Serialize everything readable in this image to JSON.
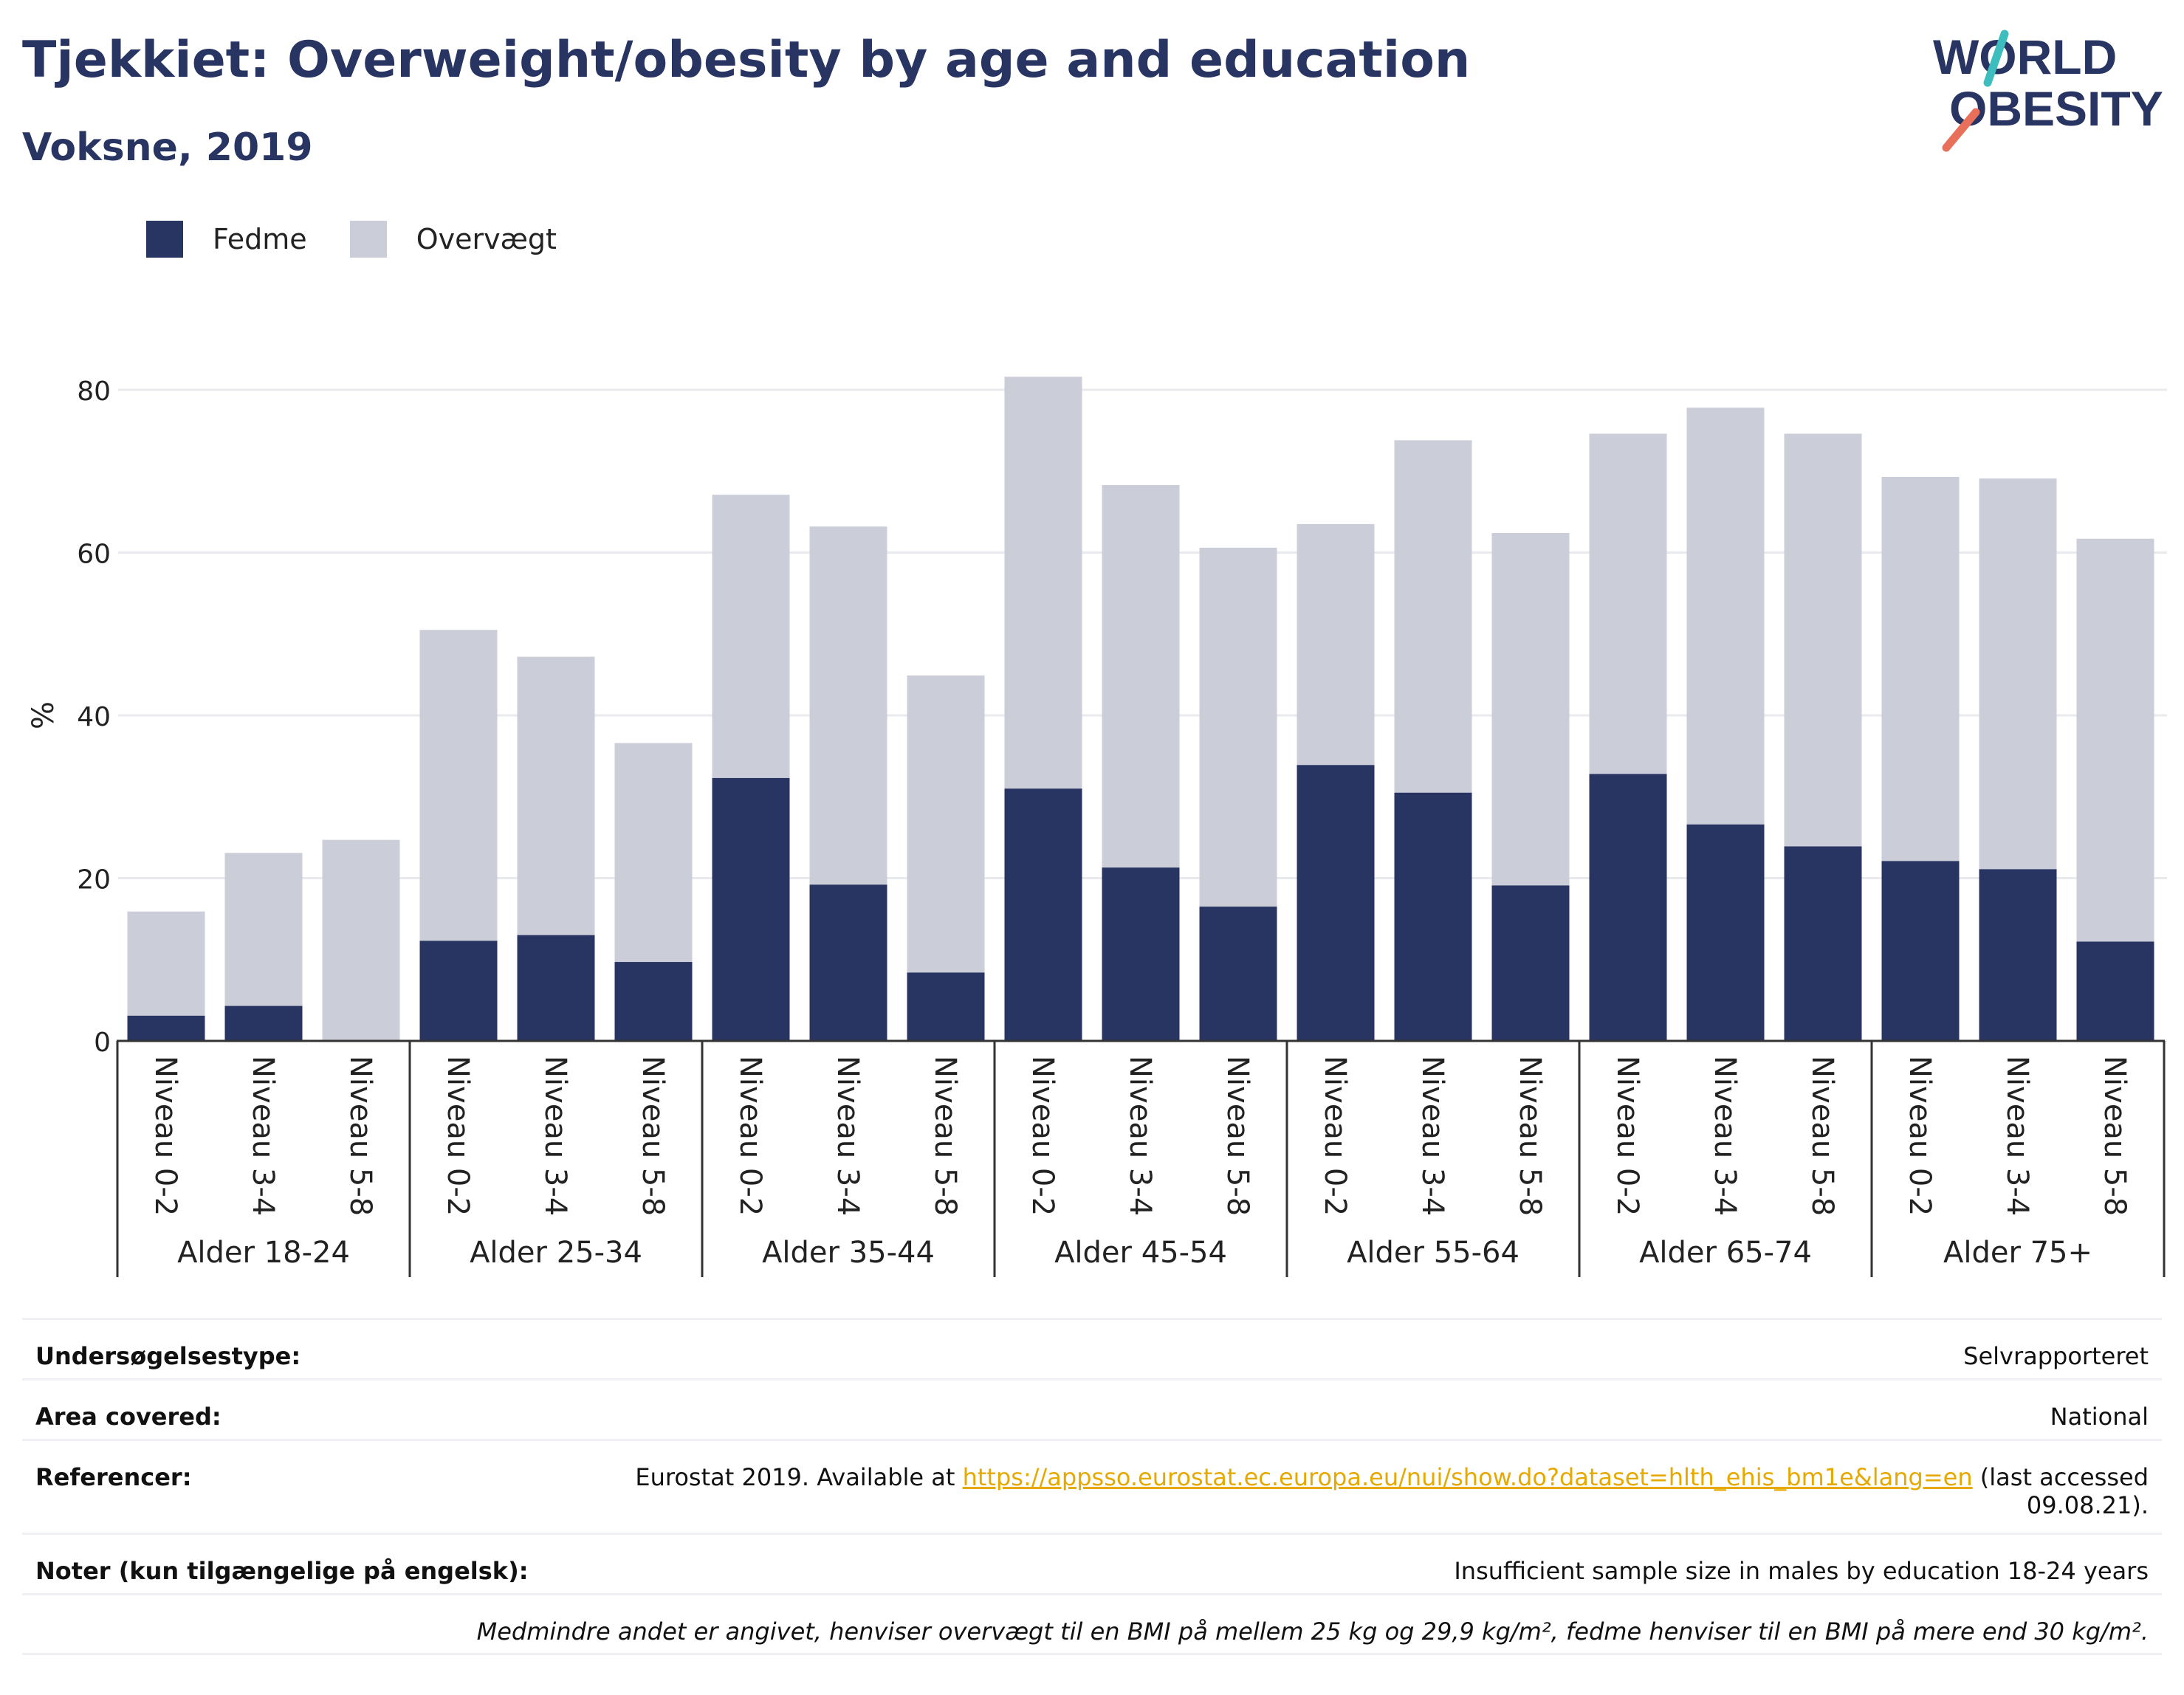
{
  "header": {
    "title": "Tjekkiet: Overweight/obesity by age and education",
    "subtitle": "Voksne, 2019",
    "logo_line1": "WORLD",
    "logo_line2": "OBESITY"
  },
  "colors": {
    "obesity": "#283462",
    "overweight": "#cbcdd9",
    "title": "#283462",
    "link": "#e6a900",
    "logo_teal": "#3dbdbd",
    "logo_coral": "#e8705a"
  },
  "legend": [
    {
      "label": "Fedme",
      "color": "#283462"
    },
    {
      "label": "Overvægt",
      "color": "#cbcdd9"
    }
  ],
  "chart_data": {
    "type": "bar",
    "stacked": true,
    "ylabel": "%",
    "ylim": [
      0,
      83
    ],
    "yticks": [
      0,
      20,
      40,
      60,
      80
    ],
    "grid": true,
    "legend_position": "top-left",
    "groups": [
      {
        "label": "Alder 18-24",
        "categories": [
          "Niveau 0-2",
          "Niveau 3-4",
          "Niveau 5-8"
        ]
      },
      {
        "label": "Alder 25-34",
        "categories": [
          "Niveau 0-2",
          "Niveau 3-4",
          "Niveau 5-8"
        ]
      },
      {
        "label": "Alder 35-44",
        "categories": [
          "Niveau 0-2",
          "Niveau 3-4",
          "Niveau 5-8"
        ]
      },
      {
        "label": "Alder 45-54",
        "categories": [
          "Niveau 0-2",
          "Niveau 3-4",
          "Niveau 5-8"
        ]
      },
      {
        "label": "Alder 55-64",
        "categories": [
          "Niveau 0-2",
          "Niveau 3-4",
          "Niveau 5-8"
        ]
      },
      {
        "label": "Alder 65-74",
        "categories": [
          "Niveau 0-2",
          "Niveau 3-4",
          "Niveau 5-8"
        ]
      },
      {
        "label": "Alder 75+",
        "categories": [
          "Niveau 0-2",
          "Niveau 3-4",
          "Niveau 5-8"
        ]
      }
    ],
    "series": [
      {
        "name": "Fedme",
        "values": [
          3.1,
          4.3,
          0,
          12.3,
          13.0,
          9.7,
          32.3,
          19.2,
          8.4,
          31.0,
          21.3,
          16.5,
          33.9,
          30.5,
          19.1,
          32.8,
          26.6,
          23.9,
          22.1,
          21.1,
          12.2
        ]
      },
      {
        "name": "Overvægt",
        "values": [
          12.8,
          18.8,
          24.7,
          38.2,
          34.2,
          26.9,
          34.8,
          44.0,
          36.5,
          50.6,
          47.0,
          44.1,
          29.6,
          43.3,
          43.3,
          41.8,
          51.2,
          50.7,
          47.2,
          48.0,
          49.5
        ]
      }
    ]
  },
  "info": {
    "survey_type_label": "Undersøgelsestype:",
    "survey_type_value": "Selvrapporteret",
    "area_label": "Area covered:",
    "area_value": "National",
    "references_label": "Referencer:",
    "references_prefix": "Eurostat 2019. Available at ",
    "references_link": "https://appsso.eurostat.ec.europa.eu/nui/show.do?dataset=hlth_ehis_bm1e&lang=en",
    "references_suffix": " (last accessed",
    "references_suffix2": "09.08.21).",
    "notes_label": "Noter (kun tilgængelige på engelsk):",
    "notes_value": "Insufficient sample size in males by education 18-24 years",
    "footnote": "Medmindre andet er angivet, henviser overvægt til en BMI på mellem 25 kg og 29,9 kg/m², fedme henviser til en BMI på mere end 30 kg/m²."
  }
}
